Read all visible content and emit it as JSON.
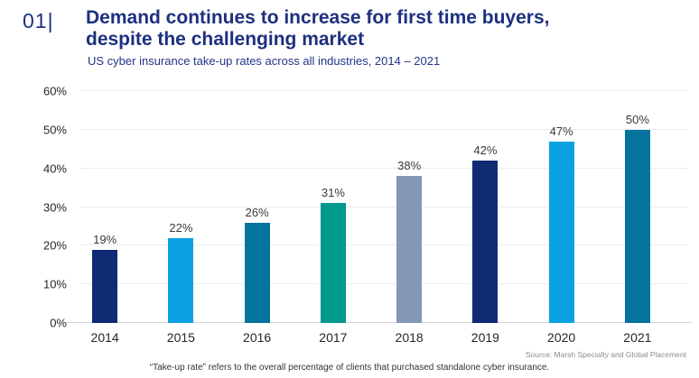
{
  "page": {
    "kicker": "01|",
    "title_lines": {
      "0": "Demand continues to increase for first time buyers,",
      "1": "despite the challenging market"
    },
    "subtitle": "US cyber insurance take-up rates across all industries, 2014 – 2021",
    "source": "Source: Marsh Specialty and Global Placement",
    "footnote": "“Take-up rate” refers to the overall percentage of clients that purchased standalone cyber insurance."
  },
  "colors": {
    "title_navy": "#1d3080",
    "navy": "#0e2b74",
    "light_blue": "#0aa1e2",
    "medium_blue": "#04739d",
    "teal": "#00998c",
    "gray_blue": "#8497b4",
    "gridline": "#ececec",
    "baseline": "#d6d6d6"
  },
  "chart_data": {
    "type": "bar",
    "title": "Demand continues to increase for first time buyers, despite the challenging market",
    "subtitle": "US cyber insurance take-up rates across all industries, 2014 – 2021",
    "categories": [
      "2014",
      "2015",
      "2016",
      "2017",
      "2018",
      "2019",
      "2020",
      "2021"
    ],
    "values": [
      19,
      22,
      26,
      31,
      38,
      42,
      47,
      50
    ],
    "data_labels": [
      "19%",
      "22%",
      "26%",
      "31%",
      "38%",
      "42%",
      "47%",
      "50%"
    ],
    "bar_colors": [
      "#0e2b74",
      "#0aa1e2",
      "#04739d",
      "#00998c",
      "#8497b4",
      "#0e2b74",
      "#0aa1e2",
      "#04739d"
    ],
    "xlabel": "",
    "ylabel": "",
    "ylim": [
      0,
      60
    ],
    "ytick_step": 10,
    "yticks": [
      "0%",
      "10%",
      "20%",
      "30%",
      "40%",
      "50%",
      "60%"
    ],
    "grid": "horizontal",
    "legend": "none"
  }
}
